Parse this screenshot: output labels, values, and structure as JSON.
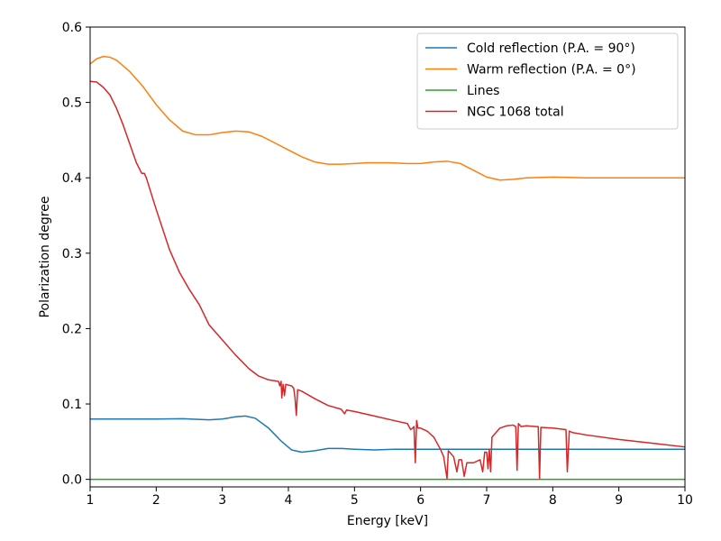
{
  "chart_data": {
    "type": "line",
    "title": "",
    "xlabel": "Energy [keV]",
    "ylabel": "Polarization degree",
    "xlim": [
      1,
      10
    ],
    "ylim": [
      -0.01,
      0.6
    ],
    "xticks": [
      1,
      2,
      3,
      4,
      5,
      6,
      7,
      8,
      9,
      10
    ],
    "xtick_labels": [
      "1",
      "2",
      "3",
      "4",
      "5",
      "6",
      "7",
      "8",
      "9",
      "10"
    ],
    "yticks": [
      0.0,
      0.1,
      0.2,
      0.3,
      0.4,
      0.5,
      0.6
    ],
    "ytick_labels": [
      "0.0",
      "0.1",
      "0.2",
      "0.3",
      "0.4",
      "0.5",
      "0.6"
    ],
    "grid": false,
    "legend_position": "top-right",
    "series": [
      {
        "name": "Cold reflection (P.A. = 90°)",
        "color": "#1f77b4",
        "points": [
          [
            1.0,
            0.08
          ],
          [
            1.5,
            0.08
          ],
          [
            2.0,
            0.08
          ],
          [
            2.4,
            0.0805
          ],
          [
            2.8,
            0.079
          ],
          [
            3.0,
            0.08
          ],
          [
            3.2,
            0.083
          ],
          [
            3.35,
            0.084
          ],
          [
            3.5,
            0.081
          ],
          [
            3.7,
            0.068
          ],
          [
            3.9,
            0.05
          ],
          [
            4.05,
            0.039
          ],
          [
            4.2,
            0.036
          ],
          [
            4.4,
            0.038
          ],
          [
            4.6,
            0.041
          ],
          [
            4.8,
            0.041
          ],
          [
            5.0,
            0.04
          ],
          [
            5.3,
            0.039
          ],
          [
            5.6,
            0.04
          ],
          [
            6.0,
            0.04
          ],
          [
            7.0,
            0.04
          ],
          [
            8.0,
            0.04
          ],
          [
            9.0,
            0.04
          ],
          [
            10.0,
            0.04
          ]
        ]
      },
      {
        "name": "Warm reflection (P.A. = 0°)",
        "color": "#ff7f0e",
        "points": [
          [
            1.0,
            0.551
          ],
          [
            1.1,
            0.558
          ],
          [
            1.2,
            0.561
          ],
          [
            1.3,
            0.56
          ],
          [
            1.4,
            0.556
          ],
          [
            1.6,
            0.541
          ],
          [
            1.8,
            0.521
          ],
          [
            2.0,
            0.497
          ],
          [
            2.2,
            0.477
          ],
          [
            2.4,
            0.462
          ],
          [
            2.6,
            0.457
          ],
          [
            2.8,
            0.457
          ],
          [
            3.0,
            0.46
          ],
          [
            3.2,
            0.462
          ],
          [
            3.4,
            0.461
          ],
          [
            3.6,
            0.455
          ],
          [
            3.8,
            0.446
          ],
          [
            4.0,
            0.437
          ],
          [
            4.2,
            0.428
          ],
          [
            4.4,
            0.421
          ],
          [
            4.6,
            0.418
          ],
          [
            4.8,
            0.418
          ],
          [
            5.0,
            0.419
          ],
          [
            5.2,
            0.42
          ],
          [
            5.5,
            0.42
          ],
          [
            5.8,
            0.419
          ],
          [
            6.0,
            0.419
          ],
          [
            6.2,
            0.421
          ],
          [
            6.4,
            0.422
          ],
          [
            6.6,
            0.419
          ],
          [
            6.8,
            0.41
          ],
          [
            7.0,
            0.401
          ],
          [
            7.2,
            0.397
          ],
          [
            7.4,
            0.398
          ],
          [
            7.6,
            0.4
          ],
          [
            8.0,
            0.401
          ],
          [
            8.5,
            0.4
          ],
          [
            9.0,
            0.4
          ],
          [
            10.0,
            0.4
          ]
        ]
      },
      {
        "name": "Lines",
        "color": "#2ca02c",
        "points": [
          [
            1.0,
            0.0
          ],
          [
            10.0,
            0.0
          ]
        ]
      },
      {
        "name": "NGC 1068 total",
        "color": "#d62728",
        "points": [
          [
            1.0,
            0.528
          ],
          [
            1.1,
            0.527
          ],
          [
            1.2,
            0.52
          ],
          [
            1.3,
            0.51
          ],
          [
            1.4,
            0.492
          ],
          [
            1.5,
            0.47
          ],
          [
            1.6,
            0.445
          ],
          [
            1.7,
            0.42
          ],
          [
            1.78,
            0.406
          ],
          [
            1.82,
            0.406
          ],
          [
            1.85,
            0.4
          ],
          [
            2.0,
            0.358
          ],
          [
            2.2,
            0.305
          ],
          [
            2.35,
            0.275
          ],
          [
            2.5,
            0.252
          ],
          [
            2.65,
            0.232
          ],
          [
            2.8,
            0.205
          ],
          [
            3.0,
            0.185
          ],
          [
            3.2,
            0.165
          ],
          [
            3.4,
            0.147
          ],
          [
            3.55,
            0.137
          ],
          [
            3.7,
            0.132
          ],
          [
            3.85,
            0.13
          ],
          [
            3.87,
            0.124
          ],
          [
            3.89,
            0.13
          ],
          [
            3.9,
            0.108
          ],
          [
            3.92,
            0.126
          ],
          [
            3.94,
            0.111
          ],
          [
            3.96,
            0.126
          ],
          [
            4.0,
            0.125
          ],
          [
            4.05,
            0.124
          ],
          [
            4.08,
            0.121
          ],
          [
            4.1,
            0.108
          ],
          [
            4.12,
            0.085
          ],
          [
            4.14,
            0.119
          ],
          [
            4.2,
            0.117
          ],
          [
            4.4,
            0.107
          ],
          [
            4.6,
            0.098
          ],
          [
            4.8,
            0.093
          ],
          [
            4.85,
            0.087
          ],
          [
            4.88,
            0.092
          ],
          [
            5.0,
            0.09
          ],
          [
            5.3,
            0.084
          ],
          [
            5.6,
            0.078
          ],
          [
            5.8,
            0.074
          ],
          [
            5.85,
            0.066
          ],
          [
            5.88,
            0.068
          ],
          [
            5.9,
            0.07
          ],
          [
            5.92,
            0.022
          ],
          [
            5.94,
            0.078
          ],
          [
            5.96,
            0.068
          ],
          [
            6.0,
            0.068
          ],
          [
            6.1,
            0.064
          ],
          [
            6.2,
            0.056
          ],
          [
            6.3,
            0.04
          ],
          [
            6.35,
            0.03
          ],
          [
            6.4,
            0.001
          ],
          [
            6.42,
            0.038
          ],
          [
            6.5,
            0.03
          ],
          [
            6.55,
            0.01
          ],
          [
            6.58,
            0.026
          ],
          [
            6.62,
            0.026
          ],
          [
            6.66,
            0.004
          ],
          [
            6.7,
            0.022
          ],
          [
            6.8,
            0.022
          ],
          [
            6.9,
            0.026
          ],
          [
            6.94,
            0.01
          ],
          [
            6.97,
            0.036
          ],
          [
            7.0,
            0.036
          ],
          [
            7.02,
            0.014
          ],
          [
            7.04,
            0.04
          ],
          [
            7.06,
            0.01
          ],
          [
            7.08,
            0.056
          ],
          [
            7.12,
            0.06
          ],
          [
            7.2,
            0.068
          ],
          [
            7.3,
            0.071
          ],
          [
            7.4,
            0.072
          ],
          [
            7.44,
            0.07
          ],
          [
            7.46,
            0.012
          ],
          [
            7.48,
            0.074
          ],
          [
            7.52,
            0.07
          ],
          [
            7.6,
            0.071
          ],
          [
            7.75,
            0.07
          ],
          [
            7.78,
            0.07
          ],
          [
            7.8,
            0.001
          ],
          [
            7.82,
            0.069
          ],
          [
            8.0,
            0.068
          ],
          [
            8.2,
            0.066
          ],
          [
            8.22,
            0.01
          ],
          [
            8.25,
            0.064
          ],
          [
            8.3,
            0.062
          ],
          [
            8.5,
            0.059
          ],
          [
            9.0,
            0.053
          ],
          [
            9.5,
            0.048
          ],
          [
            10.0,
            0.043
          ]
        ]
      }
    ]
  }
}
